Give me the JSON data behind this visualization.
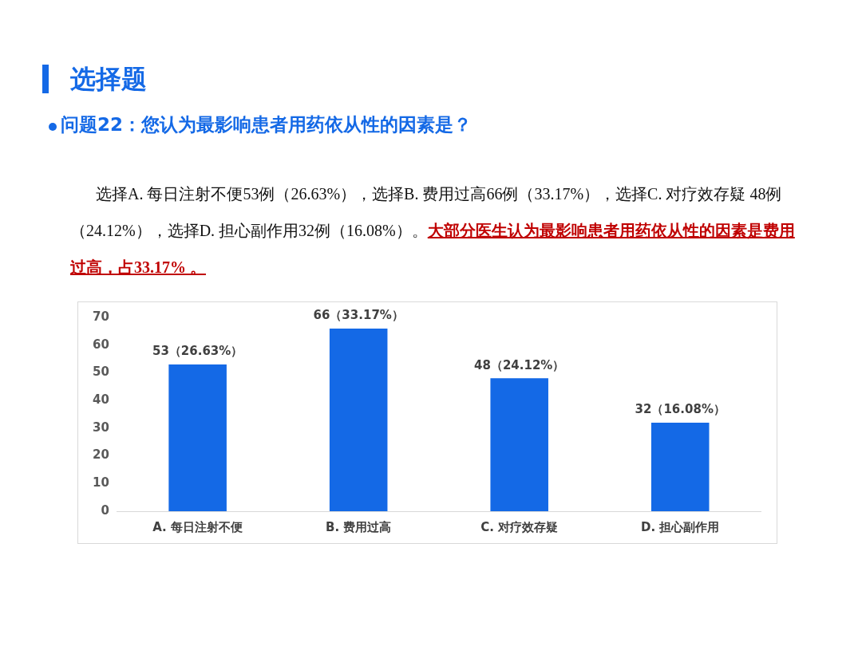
{
  "chart_data": {
    "type": "bar",
    "title": "选择题",
    "subtitle": "问题22：您认为最影响患者用药依从性的因素是？",
    "annotations": [
      "选择A. 每日注射不便53例（26.63%），选择B. 费用过高66例（33.17%），选择C. 对疗效存疑 48例（24.12%），选择D. 担心副作用32例（16.08%）。",
      "大部分医生认为最影响患者用药依从性的因素是费用过高，占33.17% 。"
    ],
    "categories": [
      "A. 每日注射不便",
      "B. 费用过高",
      "C. 对疗效存疑",
      "D. 担心副作用"
    ],
    "values": [
      53,
      66,
      48,
      32
    ],
    "value_labels": [
      "53（26.63%）",
      "66（33.17%）",
      "48（24.12%）",
      "32（16.08%）"
    ],
    "color": "#1469e6",
    "ylim": [
      0,
      70
    ],
    "yticks": [
      0,
      10,
      20,
      30,
      40,
      50,
      60,
      70
    ],
    "grid": false,
    "legend": false
  }
}
